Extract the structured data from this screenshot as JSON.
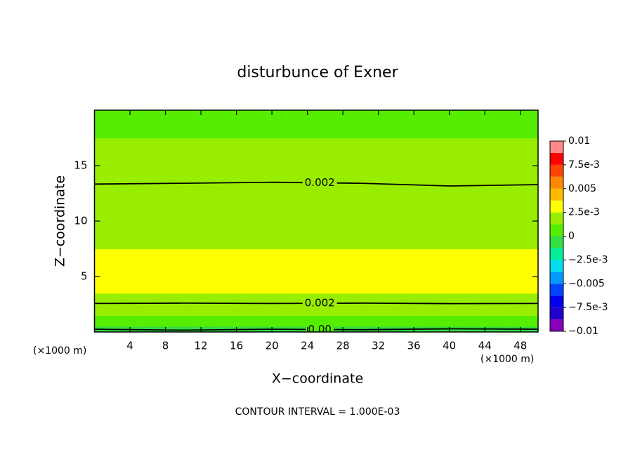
{
  "chart_data": {
    "type": "contour",
    "title": "disturbunce of Exner",
    "xlabel": "X−coordinate",
    "ylabel": "Z−coordinate",
    "x_unit": "(×1000 m)",
    "footnote": "CONTOUR INTERVAL = 1.000E-03",
    "xlim": [
      0,
      50
    ],
    "ylim": [
      0,
      20
    ],
    "xticks": [
      4,
      8,
      12,
      16,
      20,
      24,
      28,
      32,
      36,
      40,
      44,
      48
    ],
    "yticks": [
      5,
      10,
      15
    ],
    "x": [
      0,
      10,
      20,
      30,
      40,
      50
    ],
    "y": [
      0,
      1,
      2,
      3,
      4,
      5,
      6,
      7,
      8,
      9,
      10,
      11,
      12,
      13,
      14,
      15,
      16,
      17,
      18,
      19,
      20
    ],
    "z": [
      [
        -0.0003,
        -0.0002,
        -0.0003,
        -0.0002,
        -0.0004,
        -0.0003
      ],
      [
        0.0009,
        0.001,
        0.0009,
        0.0008,
        0.001,
        0.0009
      ],
      [
        0.0016,
        0.0017,
        0.0016,
        0.0017,
        0.0015,
        0.0016
      ],
      [
        0.0023,
        0.0022,
        0.0023,
        0.0022,
        0.0024,
        0.0023
      ],
      [
        0.0029,
        0.0029,
        0.0028,
        0.0029,
        0.0029,
        0.0029
      ],
      [
        0.0034,
        0.0033,
        0.0034,
        0.0034,
        0.0034,
        0.0034
      ],
      [
        0.003,
        0.003,
        0.003,
        0.0031,
        0.003,
        0.003
      ],
      [
        0.0025,
        0.0025,
        0.0025,
        0.0026,
        0.0025,
        0.0025
      ],
      [
        0.0024,
        0.0024,
        0.0024,
        0.0024,
        0.0024,
        0.0024
      ],
      [
        0.0024,
        0.0024,
        0.0024,
        0.0024,
        0.0024,
        0.0024
      ],
      [
        0.0023,
        0.0023,
        0.0023,
        0.0023,
        0.0023,
        0.0023
      ],
      [
        0.0023,
        0.0023,
        0.0023,
        0.0023,
        0.0023,
        0.0023
      ],
      [
        0.0022,
        0.0022,
        0.0022,
        0.0022,
        0.0022,
        0.0022
      ],
      [
        0.00205,
        0.00207,
        0.0021,
        0.00207,
        0.00202,
        0.00204
      ],
      [
        0.0019,
        0.0019,
        0.0019,
        0.0019,
        0.0019,
        0.0019
      ],
      [
        0.0017,
        0.0017,
        0.0017,
        0.0017,
        0.0017,
        0.0017
      ],
      [
        0.0015,
        0.0015,
        0.0015,
        0.0015,
        0.0015,
        0.0015
      ],
      [
        0.0013,
        0.0013,
        0.0013,
        0.0013,
        0.0013,
        0.0013
      ],
      [
        0.0012,
        0.0012,
        0.0012,
        0.0012,
        0.0012,
        0.0012
      ],
      [
        0.001,
        0.001,
        0.001,
        0.001,
        0.001,
        0.001
      ],
      [
        0.0009,
        0.0009,
        0.0009,
        0.0009,
        0.0009,
        0.0009
      ]
    ],
    "contour_levels": [
      {
        "value": 0,
        "label": "0.00"
      },
      {
        "value": 0.002,
        "label": "0.002"
      }
    ],
    "contour_color": "#000000",
    "colorbar": {
      "lim": [
        -0.01,
        0.01
      ],
      "colors": [
        "#8800bb",
        "#2200cc",
        "#0000ee",
        "#0044ff",
        "#0099ff",
        "#00ddee",
        "#00ee99",
        "#33dd44",
        "#55ee00",
        "#99ee00",
        "#ffff00",
        "#ffbb00",
        "#ff8800",
        "#ff4400",
        "#ff0000",
        "#ff8888"
      ],
      "ticks": [
        {
          "value": 0.01,
          "label": "0.01"
        },
        {
          "value": 0.0075,
          "label": "7.5e-3"
        },
        {
          "value": 0.005,
          "label": "0.005"
        },
        {
          "value": 0.0025,
          "label": "2.5e-3"
        },
        0,
        {
          "value": -0.0025,
          "label": "−2.5e-3"
        },
        {
          "value": -0.005,
          "label": "−0.005"
        },
        {
          "value": -0.0075,
          "label": "−7.5e-3"
        },
        {
          "value": -0.01,
          "label": "−0.01"
        }
      ]
    }
  }
}
